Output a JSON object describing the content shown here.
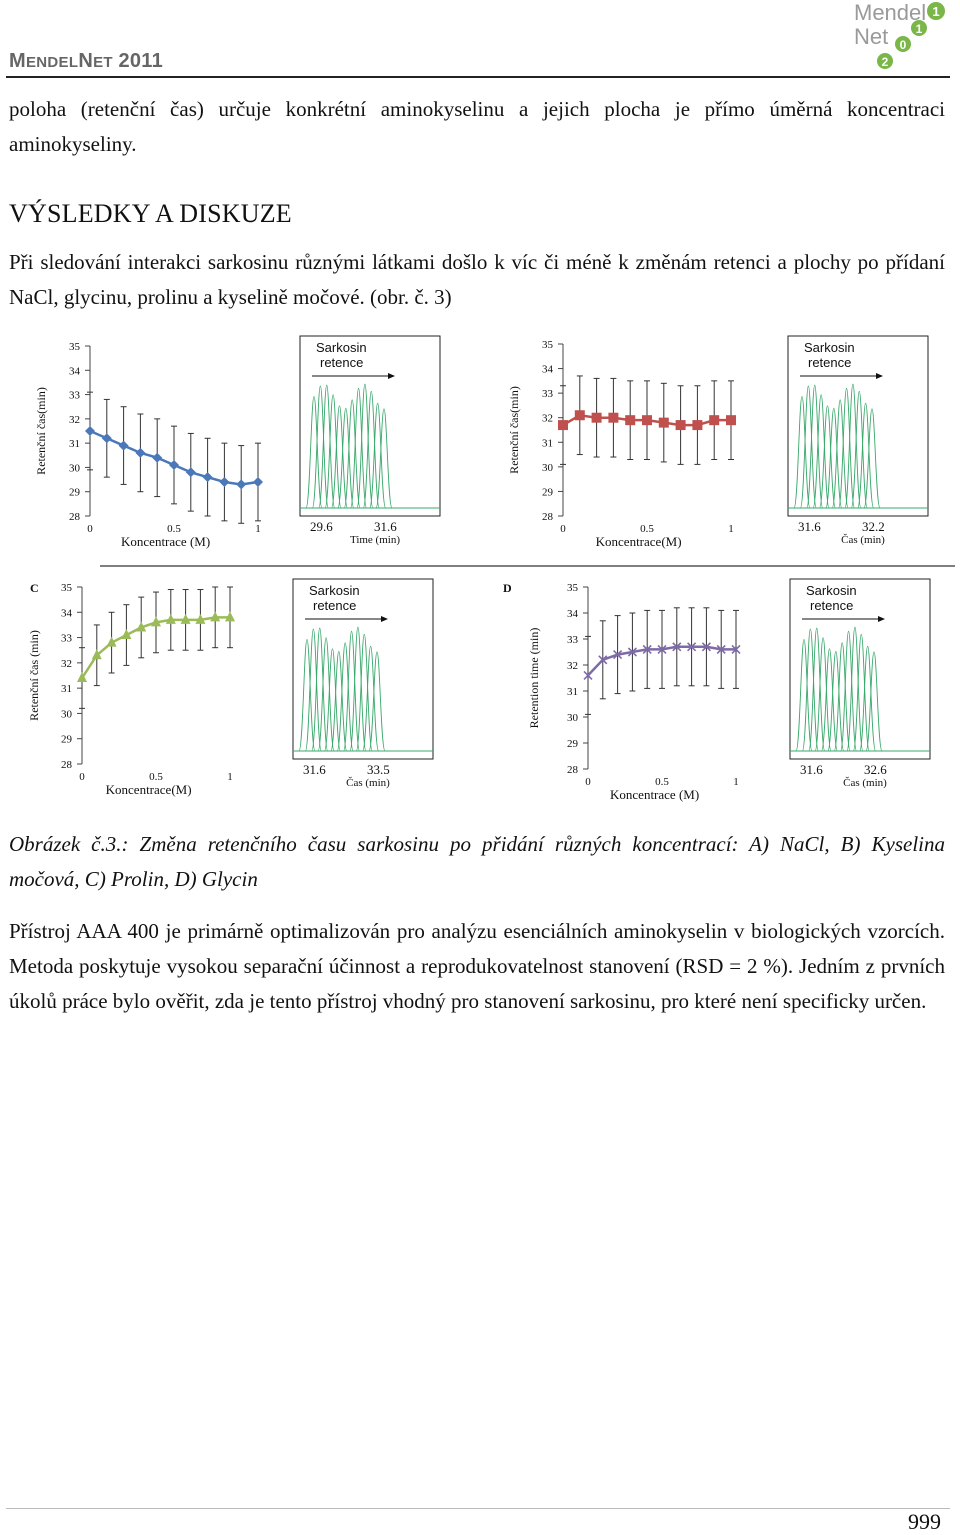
{
  "header": {
    "conference": "MENDELNET 2011",
    "conf_m": "M",
    "conf_endel": "ENDEL",
    "conf_n": "N",
    "conf_et": "ET",
    "conf_year": "2011",
    "logo_word1": "Mendel",
    "logo_word2": "Net",
    "logo_digits": [
      "1",
      "1",
      "0",
      "2"
    ]
  },
  "intro_text": "poloha (retenční čas) určuje konkrétní aminokyselinu a jejich plocha je přímo úměrná koncentraci aminokyseliny.",
  "section_heading": "VÝSLEDKY A DISKUZE",
  "results_text": "Při sledování interakci sarkosinu různými látkami došlo k víc či méně k změnám retenci a plochy po přídaní NaCl, glycinu, prolinu a kyselině močové. (obr. č. 3)",
  "figure": {
    "panels": [
      {
        "label": "",
        "ylabel": "Retenční čas(min)",
        "xlabel": "Koncentrace (M)",
        "chrom_title1": "Sarkosin",
        "chrom_title2": "retence",
        "chrom_x1": "29.6",
        "chrom_x2": "31.6",
        "chrom_xlabel": "Time (min)",
        "color": "#4a78b8",
        "marker": "diamond"
      },
      {
        "label": "",
        "ylabel": "Retenční čas(min)",
        "xlabel": "Koncentrace(M)",
        "chrom_title1": "Sarkosin",
        "chrom_title2": "retence",
        "chrom_x1": "31.6",
        "chrom_x2": "32.2",
        "chrom_xlabel": "Čas (min)",
        "color": "#c0504d",
        "marker": "square"
      },
      {
        "label": "C",
        "ylabel": "Retenční čas (min)",
        "xlabel": "Koncentrace(M)",
        "chrom_title1": "Sarkosin",
        "chrom_title2": "retence",
        "chrom_x1": "31.6",
        "chrom_x2": "33.5",
        "chrom_xlabel": "Čas (min)",
        "color": "#9bbb59",
        "marker": "triangle"
      },
      {
        "label": "D",
        "ylabel": "Retention time (min)",
        "xlabel": "Koncentrace (M)",
        "chrom_title1": "Sarkosin",
        "chrom_title2": "retence",
        "chrom_x1": "31.6",
        "chrom_x2": "32.6",
        "chrom_xlabel": "Čas (min)",
        "color": "#7f6aa8",
        "marker": "x"
      }
    ],
    "y_ticks": [
      "35",
      "34",
      "33",
      "32",
      "31",
      "30",
      "29",
      "28"
    ],
    "x_ticks": [
      "0",
      "0.5",
      "1"
    ]
  },
  "chart_data": [
    {
      "type": "line",
      "panel": "A",
      "x": [
        0,
        0.1,
        0.2,
        0.3,
        0.4,
        0.5,
        0.6,
        0.7,
        0.8,
        0.9,
        1.0
      ],
      "series": [
        {
          "values": [
            31.5,
            31.2,
            30.9,
            30.6,
            30.4,
            30.1,
            29.8,
            29.6,
            29.4,
            29.3,
            29.4
          ],
          "error": 1.6
        }
      ],
      "ylim": [
        28,
        35
      ],
      "xlim": [
        0,
        1
      ]
    },
    {
      "type": "line",
      "panel": "B",
      "x": [
        0,
        0.1,
        0.2,
        0.3,
        0.4,
        0.5,
        0.6,
        0.7,
        0.8,
        0.9,
        1.0
      ],
      "series": [
        {
          "values": [
            31.7,
            32.1,
            32.0,
            32.0,
            31.9,
            31.9,
            31.8,
            31.7,
            31.7,
            31.9,
            31.9
          ],
          "error": 1.6
        }
      ],
      "ylim": [
        28,
        35
      ],
      "xlim": [
        0,
        1
      ]
    },
    {
      "type": "line",
      "panel": "C",
      "x": [
        0,
        0.1,
        0.2,
        0.3,
        0.4,
        0.5,
        0.6,
        0.7,
        0.8,
        0.9,
        1.0
      ],
      "series": [
        {
          "values": [
            31.4,
            32.3,
            32.8,
            33.1,
            33.4,
            33.6,
            33.7,
            33.7,
            33.7,
            33.8,
            33.8
          ],
          "error": 1.2
        }
      ],
      "ylim": [
        28,
        35
      ],
      "xlim": [
        0,
        1
      ]
    },
    {
      "type": "line",
      "panel": "D",
      "x": [
        0,
        0.1,
        0.2,
        0.3,
        0.4,
        0.5,
        0.6,
        0.7,
        0.8,
        0.9,
        1.0
      ],
      "series": [
        {
          "values": [
            31.6,
            32.2,
            32.4,
            32.5,
            32.6,
            32.6,
            32.7,
            32.7,
            32.7,
            32.6,
            32.6
          ],
          "error": 1.5
        }
      ],
      "ylim": [
        28,
        35
      ],
      "xlim": [
        0,
        1
      ]
    }
  ],
  "caption": "Obrázek č.3.: Změna retenčního času sarkosinu po přidání různých koncentrací: A) NaCl, B) Kyselina močová, C) Prolin, D) Glycin",
  "body_text": "Přístroj AAA 400 je primárně optimalizován pro analýzu esenciálních aminokyselin v biologických vzorcích. Metoda poskytuje vysokou separační účinnost a reprodukovatelnost stanovení (RSD = 2 %). Jedním z prvních úkolů práce bylo ověřit, zda je tento přístroj vhodný pro stanovení sarkosinu, pro které není specificky určen.",
  "page_number": "999"
}
